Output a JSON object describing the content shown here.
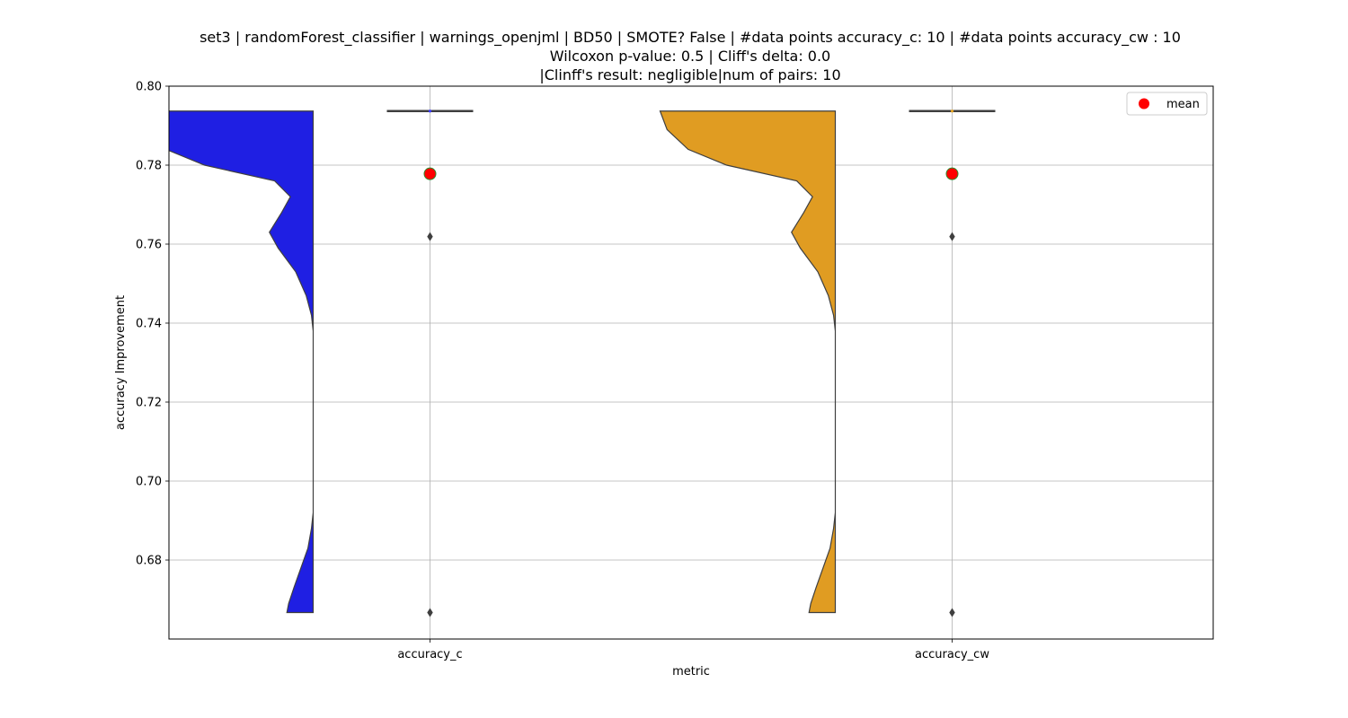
{
  "chart_data": {
    "type": "violin",
    "title_lines": [
      "set3 | randomForest_classifier | warnings_openjml | BD50 | SMOTE? False | #data points accuracy_c: 10 | #data points accuracy_cw : 10",
      "Wilcoxon p-value: 0.5 | Cliff's delta: 0.0",
      "|Clinff's result: negligible|num of pairs: 10"
    ],
    "xlabel": "metric",
    "ylabel": "accuracy Improvement",
    "ylim": [
      0.66,
      0.8
    ],
    "yticks": [
      0.68,
      0.7,
      0.72,
      0.74,
      0.76,
      0.78,
      0.8
    ],
    "ytick_labels": [
      "0.68",
      "0.70",
      "0.72",
      "0.74",
      "0.76",
      "0.78",
      "0.80"
    ],
    "categories": [
      "accuracy_c",
      "accuracy_cw"
    ],
    "grid": true,
    "legend": {
      "position": "upper right",
      "entries": [
        {
          "label": "mean",
          "marker": "circle",
          "color": "#ff0000"
        }
      ]
    },
    "series": [
      {
        "category": "accuracy_c",
        "violin_color": "#1f1fe3",
        "box_median_color": "#3a3aff",
        "violin_range": [
          0.6667,
          0.7937
        ],
        "q1": 0.7937,
        "median": 0.7937,
        "q3": 0.7937,
        "mean": 0.7778,
        "outliers": [
          0.7619,
          0.6667
        ]
      },
      {
        "category": "accuracy_cw",
        "violin_color": "#e09c22",
        "box_median_color": "#e0a020",
        "violin_range": [
          0.6667,
          0.7937
        ],
        "q1": 0.7937,
        "median": 0.7937,
        "q3": 0.7937,
        "mean": 0.7778,
        "outliers": [
          0.7619,
          0.6667
        ]
      }
    ]
  }
}
